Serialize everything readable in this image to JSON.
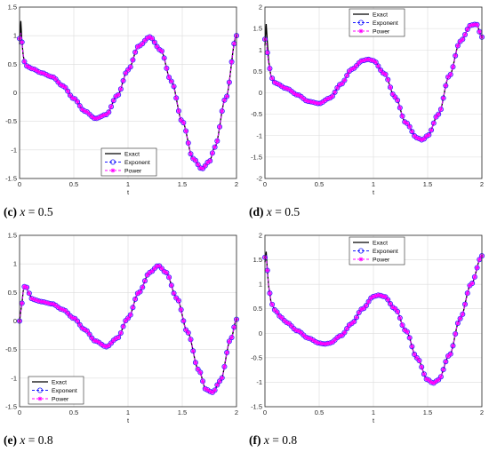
{
  "panels": [
    {
      "caption": {
        "tag": "(c)",
        "var": "x",
        "rest": " = 0.5"
      }
    },
    {
      "caption": {
        "tag": "(d)",
        "var": "x",
        "rest": " = 0.5"
      }
    },
    {
      "caption": {
        "tag": "(e)",
        "var": "x",
        "rest": " = 0.8"
      }
    },
    {
      "caption": {
        "tag": "(f)",
        "var": "x",
        "rest": " = 0.8"
      }
    }
  ],
  "colors": {
    "exact": "#000000",
    "exponent": "#1a1aff",
    "power": "#ff00ff",
    "grid": "#dcdcdc",
    "axis": "#262626"
  },
  "chart_data": [
    {
      "type": "line",
      "xlabel": "t",
      "ylabel": "",
      "xlim": [
        0,
        2
      ],
      "ylim": [
        -1.5,
        1.5
      ],
      "xticks": [
        "0",
        "0.5",
        "1",
        "1.5",
        "2"
      ],
      "yticks": [
        "-1.5",
        "-1",
        "-0.5",
        "0",
        "0.5",
        "1",
        "1.5"
      ],
      "grid": true,
      "legend_position": "bottom-center",
      "series": [
        {
          "name": "Exact",
          "style": "solid",
          "marker": "none",
          "x": [
            0,
            0.01,
            0.02,
            0.035,
            0.05,
            0.08,
            0.12,
            0.2,
            0.3,
            0.4,
            0.5,
            0.6,
            0.7,
            0.8,
            0.9,
            1.0,
            1.1,
            1.2,
            1.3,
            1.4,
            1.5,
            1.6,
            1.68,
            1.75,
            1.8,
            1.9,
            2.0
          ],
          "y": [
            0.85,
            1.27,
            0.9,
            0.65,
            0.5,
            0.45,
            0.42,
            0.35,
            0.28,
            0.12,
            -0.1,
            -0.32,
            -0.45,
            -0.38,
            -0.05,
            0.4,
            0.82,
            0.98,
            0.75,
            0.2,
            -0.5,
            -1.15,
            -1.33,
            -1.2,
            -0.95,
            -0.1,
            1.0
          ]
        },
        {
          "name": "Exponent",
          "style": "dashed",
          "marker": "circle",
          "x": [
            0,
            0.01,
            0.02,
            0.035,
            0.05,
            0.08,
            0.12,
            0.2,
            0.3,
            0.4,
            0.5,
            0.6,
            0.7,
            0.8,
            0.9,
            1.0,
            1.1,
            1.2,
            1.3,
            1.4,
            1.5,
            1.6,
            1.68,
            1.75,
            1.8,
            1.9,
            2.0
          ],
          "y": [
            0.95,
            1.05,
            0.9,
            0.65,
            0.5,
            0.45,
            0.42,
            0.35,
            0.28,
            0.12,
            -0.1,
            -0.32,
            -0.45,
            -0.38,
            -0.05,
            0.4,
            0.82,
            0.98,
            0.75,
            0.2,
            -0.5,
            -1.15,
            -1.33,
            -1.2,
            -0.95,
            -0.1,
            1.0
          ]
        },
        {
          "name": "Power",
          "style": "dashed",
          "marker": "star",
          "x": [
            0,
            0.01,
            0.02,
            0.035,
            0.05,
            0.08,
            0.12,
            0.2,
            0.3,
            0.4,
            0.5,
            0.6,
            0.7,
            0.8,
            0.9,
            1.0,
            1.1,
            1.2,
            1.3,
            1.4,
            1.5,
            1.6,
            1.68,
            1.75,
            1.8,
            1.9,
            2.0
          ],
          "y": [
            0.95,
            1.05,
            0.9,
            0.65,
            0.5,
            0.45,
            0.42,
            0.35,
            0.28,
            0.12,
            -0.1,
            -0.32,
            -0.45,
            -0.38,
            -0.05,
            0.4,
            0.82,
            0.98,
            0.75,
            0.2,
            -0.5,
            -1.15,
            -1.33,
            -1.2,
            -0.95,
            -0.1,
            1.0
          ]
        }
      ]
    },
    {
      "type": "line",
      "xlabel": "t",
      "ylabel": "",
      "xlim": [
        0,
        2
      ],
      "ylim": [
        -2,
        2
      ],
      "xticks": [
        "0",
        "0.5",
        "1",
        "1.5",
        "2"
      ],
      "yticks": [
        "-2",
        "-1.5",
        "-1",
        "-0.5",
        "0",
        "0.5",
        "1",
        "1.5",
        "2"
      ],
      "grid": true,
      "legend_position": "top-center",
      "series": [
        {
          "name": "Exact",
          "style": "solid",
          "marker": "none",
          "x": [
            0,
            0.01,
            0.02,
            0.04,
            0.06,
            0.1,
            0.2,
            0.3,
            0.4,
            0.5,
            0.6,
            0.7,
            0.8,
            0.9,
            0.95,
            1.0,
            1.1,
            1.2,
            1.3,
            1.4,
            1.45,
            1.5,
            1.6,
            1.7,
            1.8,
            1.9,
            1.95,
            2.0
          ],
          "y": [
            1.1,
            1.62,
            1.2,
            0.6,
            0.35,
            0.22,
            0.1,
            -0.05,
            -0.2,
            -0.25,
            -0.12,
            0.2,
            0.55,
            0.75,
            0.78,
            0.75,
            0.45,
            -0.1,
            -0.7,
            -1.05,
            -1.1,
            -1.0,
            -0.5,
            0.4,
            1.2,
            1.58,
            1.6,
            1.3
          ]
        },
        {
          "name": "Exponent",
          "style": "dashed",
          "marker": "circle",
          "x": [
            0,
            0.01,
            0.02,
            0.04,
            0.06,
            0.1,
            0.2,
            0.3,
            0.4,
            0.5,
            0.6,
            0.7,
            0.8,
            0.9,
            0.95,
            1.0,
            1.1,
            1.2,
            1.3,
            1.4,
            1.45,
            1.5,
            1.6,
            1.7,
            1.8,
            1.9,
            1.95,
            2.0
          ],
          "y": [
            1.25,
            1.25,
            0.95,
            0.6,
            0.35,
            0.22,
            0.1,
            -0.05,
            -0.2,
            -0.25,
            -0.12,
            0.2,
            0.55,
            0.75,
            0.78,
            0.75,
            0.45,
            -0.1,
            -0.7,
            -1.05,
            -1.1,
            -1.0,
            -0.5,
            0.4,
            1.2,
            1.58,
            1.6,
            1.3
          ]
        },
        {
          "name": "Power",
          "style": "dashed",
          "marker": "star",
          "x": [
            0,
            0.01,
            0.02,
            0.04,
            0.06,
            0.1,
            0.2,
            0.3,
            0.4,
            0.5,
            0.6,
            0.7,
            0.8,
            0.9,
            0.95,
            1.0,
            1.1,
            1.2,
            1.3,
            1.4,
            1.45,
            1.5,
            1.6,
            1.7,
            1.8,
            1.9,
            1.95,
            2.0
          ],
          "y": [
            1.25,
            1.25,
            0.95,
            0.6,
            0.35,
            0.22,
            0.1,
            -0.05,
            -0.2,
            -0.25,
            -0.12,
            0.2,
            0.55,
            0.75,
            0.78,
            0.75,
            0.45,
            -0.1,
            -0.7,
            -1.05,
            -1.1,
            -1.0,
            -0.5,
            0.4,
            1.2,
            1.58,
            1.6,
            1.3
          ]
        }
      ]
    },
    {
      "type": "line",
      "xlabel": "t",
      "ylabel": "",
      "xlim": [
        0,
        2
      ],
      "ylim": [
        -1.5,
        1.5
      ],
      "xticks": [
        "0",
        "0.5",
        "1",
        "1.5",
        "2"
      ],
      "yticks": [
        "-1.5",
        "-1",
        "-0.5",
        "0",
        "0.5",
        "1",
        "1.5"
      ],
      "grid": true,
      "legend_position": "bottom-left",
      "series": [
        {
          "name": "Exact",
          "style": "solid",
          "marker": "none",
          "x": [
            0,
            0.02,
            0.04,
            0.06,
            0.08,
            0.12,
            0.2,
            0.3,
            0.4,
            0.5,
            0.6,
            0.7,
            0.8,
            0.9,
            1.0,
            1.1,
            1.2,
            1.28,
            1.35,
            1.45,
            1.55,
            1.65,
            1.72,
            1.78,
            1.85,
            1.95,
            2.0
          ],
          "y": [
            0,
            0.3,
            0.6,
            0.62,
            0.5,
            0.38,
            0.34,
            0.3,
            0.2,
            0.05,
            -0.15,
            -0.35,
            -0.45,
            -0.3,
            0.05,
            0.5,
            0.85,
            0.97,
            0.85,
            0.4,
            -0.2,
            -0.85,
            -1.2,
            -1.25,
            -1.05,
            -0.3,
            0.03
          ]
        },
        {
          "name": "Exponent",
          "style": "dashed",
          "marker": "circle",
          "x": [
            0,
            0.02,
            0.04,
            0.06,
            0.08,
            0.12,
            0.2,
            0.3,
            0.4,
            0.5,
            0.6,
            0.7,
            0.8,
            0.9,
            1.0,
            1.1,
            1.2,
            1.28,
            1.35,
            1.45,
            1.55,
            1.65,
            1.72,
            1.78,
            1.85,
            1.95,
            2.0
          ],
          "y": [
            0,
            0.3,
            0.6,
            0.62,
            0.5,
            0.38,
            0.34,
            0.3,
            0.2,
            0.05,
            -0.15,
            -0.35,
            -0.45,
            -0.3,
            0.05,
            0.5,
            0.85,
            0.97,
            0.85,
            0.4,
            -0.2,
            -0.85,
            -1.2,
            -1.25,
            -1.05,
            -0.3,
            0.03
          ]
        },
        {
          "name": "Power",
          "style": "dashed",
          "marker": "star",
          "x": [
            0,
            0.02,
            0.04,
            0.06,
            0.08,
            0.12,
            0.2,
            0.3,
            0.4,
            0.5,
            0.6,
            0.7,
            0.8,
            0.9,
            1.0,
            1.1,
            1.2,
            1.28,
            1.35,
            1.45,
            1.55,
            1.65,
            1.72,
            1.78,
            1.85,
            1.95,
            2.0
          ],
          "y": [
            0,
            0.3,
            0.6,
            0.62,
            0.5,
            0.38,
            0.34,
            0.3,
            0.2,
            0.05,
            -0.15,
            -0.35,
            -0.45,
            -0.3,
            0.05,
            0.5,
            0.85,
            0.97,
            0.85,
            0.4,
            -0.2,
            -0.85,
            -1.2,
            -1.25,
            -1.05,
            -0.3,
            0.03
          ]
        }
      ]
    },
    {
      "type": "line",
      "xlabel": "t",
      "ylabel": "",
      "xlim": [
        0,
        2
      ],
      "ylim": [
        -1.5,
        2
      ],
      "xticks": [
        "0",
        "0.5",
        "1",
        "1.5",
        "2"
      ],
      "yticks": [
        "-1.5",
        "-1",
        "-0.5",
        "0",
        "0.5",
        "1",
        "1.5",
        "2"
      ],
      "grid": true,
      "legend_position": "top-center",
      "series": [
        {
          "name": "Exact",
          "style": "solid",
          "marker": "none",
          "x": [
            0,
            0.01,
            0.02,
            0.04,
            0.06,
            0.1,
            0.15,
            0.2,
            0.3,
            0.4,
            0.5,
            0.55,
            0.6,
            0.7,
            0.8,
            0.9,
            1.0,
            1.05,
            1.1,
            1.2,
            1.3,
            1.4,
            1.5,
            1.55,
            1.6,
            1.7,
            1.8,
            1.9,
            2.0
          ],
          "y": [
            1.45,
            1.68,
            1.3,
            0.85,
            0.6,
            0.45,
            0.32,
            0.22,
            0.05,
            -0.1,
            -0.2,
            -0.22,
            -0.2,
            -0.05,
            0.2,
            0.5,
            0.75,
            0.78,
            0.75,
            0.5,
            0.05,
            -0.5,
            -0.95,
            -1.02,
            -0.95,
            -0.45,
            0.3,
            1.0,
            1.58
          ]
        },
        {
          "name": "Exponent",
          "style": "dashed",
          "marker": "circle",
          "x": [
            0,
            0.01,
            0.02,
            0.04,
            0.06,
            0.1,
            0.15,
            0.2,
            0.3,
            0.4,
            0.5,
            0.55,
            0.6,
            0.7,
            0.8,
            0.9,
            1.0,
            1.05,
            1.1,
            1.2,
            1.3,
            1.4,
            1.5,
            1.55,
            1.6,
            1.7,
            1.8,
            1.9,
            2.0
          ],
          "y": [
            1.55,
            1.55,
            1.3,
            0.85,
            0.6,
            0.45,
            0.32,
            0.22,
            0.05,
            -0.1,
            -0.2,
            -0.22,
            -0.2,
            -0.05,
            0.2,
            0.5,
            0.75,
            0.78,
            0.75,
            0.5,
            0.05,
            -0.5,
            -0.95,
            -1.02,
            -0.95,
            -0.45,
            0.3,
            1.0,
            1.58
          ]
        },
        {
          "name": "Power",
          "style": "dashed",
          "marker": "star",
          "x": [
            0,
            0.01,
            0.02,
            0.04,
            0.06,
            0.1,
            0.15,
            0.2,
            0.3,
            0.4,
            0.5,
            0.55,
            0.6,
            0.7,
            0.8,
            0.9,
            1.0,
            1.05,
            1.1,
            1.2,
            1.3,
            1.4,
            1.5,
            1.55,
            1.6,
            1.7,
            1.8,
            1.9,
            2.0
          ],
          "y": [
            1.55,
            1.55,
            1.3,
            0.85,
            0.6,
            0.45,
            0.32,
            0.22,
            0.05,
            -0.1,
            -0.2,
            -0.22,
            -0.2,
            -0.05,
            0.2,
            0.5,
            0.75,
            0.78,
            0.75,
            0.5,
            0.05,
            -0.5,
            -0.95,
            -1.02,
            -0.95,
            -0.45,
            0.3,
            1.0,
            1.58
          ]
        }
      ]
    }
  ]
}
